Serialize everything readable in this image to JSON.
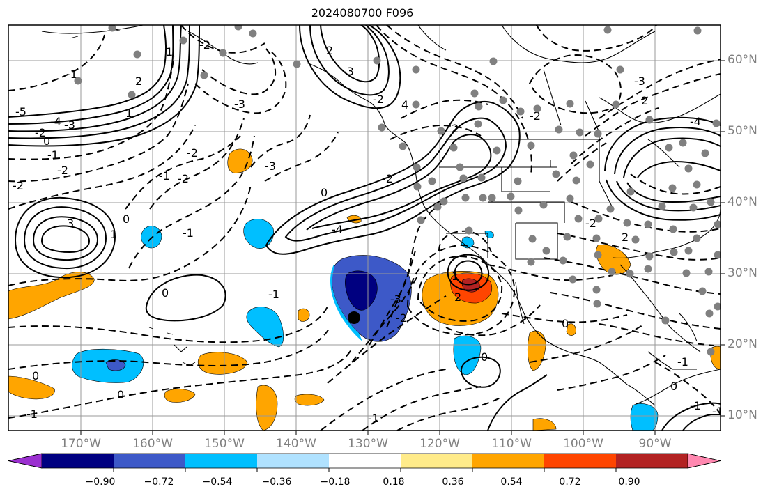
{
  "title": "2024080700 F096",
  "lat_labels": [
    "60°N",
    "50°N",
    "40°N",
    "30°N",
    "20°N",
    "10°N"
  ],
  "lon_labels": [
    "170°W",
    "160°W",
    "150°W",
    "140°W",
    "130°W",
    "120°W",
    "110°W",
    "100°W",
    "90°W"
  ],
  "colorbar": {
    "colors": [
      "#9b30d0",
      "#000080",
      "#3d59c8",
      "#00bfff",
      "#b0e2ff",
      "#ffffff",
      "#ffeb8a",
      "#ffa500",
      "#ff4500",
      "#b22222",
      "#ff88b0"
    ],
    "tick_labels": [
      "−0.90",
      "−0.72",
      "−0.54",
      "−0.36",
      "−0.18",
      "0.18",
      "0.36",
      "0.54",
      "0.72",
      "0.90"
    ]
  },
  "contour_labels": {
    "c1": "-5",
    "c2": "-4",
    "c3": "-3",
    "c4": "-2",
    "c5": "0",
    "c6": "-1",
    "c7": "-2",
    "c8": "-2",
    "c9": "-3",
    "c10": "-2",
    "c11": "-3",
    "c12": "-1",
    "c13": "3",
    "c14": "1",
    "c15": "0",
    "c16": "-1",
    "c17": "1",
    "c18": "-1",
    "c19": "2",
    "c20": "-2",
    "c21": "0",
    "c22": "1",
    "c23": "-2",
    "c24": "2",
    "c25": "-1",
    "c26": "0",
    "c27": "0",
    "c28": "-1",
    "c29": "-2",
    "c30": "0",
    "c31": "-4",
    "c32": "-2",
    "c33": "-3",
    "c34": "4",
    "c35": "2",
    "c36": "-3",
    "c37": "-2",
    "c38": "2",
    "c39": "0",
    "c40": "1",
    "c41": "-1",
    "c42": "-2",
    "c43": "-2",
    "c44": "0",
    "c45": "-1",
    "c46": "-1",
    "c47": "0",
    "c48": "-1",
    "c49": "2",
    "c50": "-4",
    "c51": "-3",
    "c52": "2"
  }
}
